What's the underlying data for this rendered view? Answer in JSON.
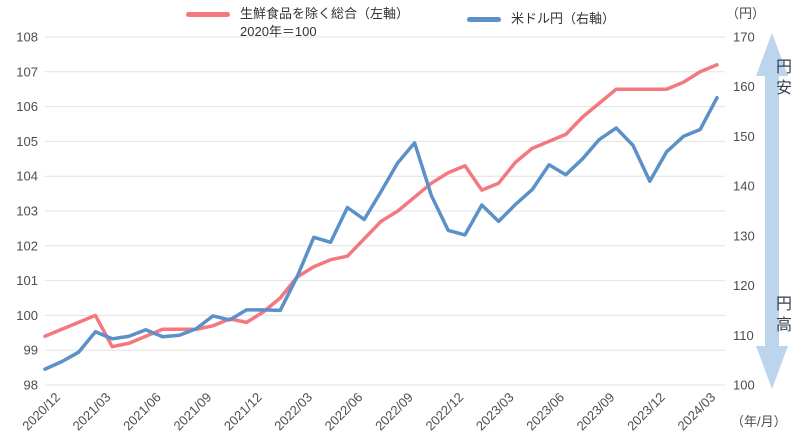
{
  "legend": {
    "cpi": {
      "line1": "生鮮食品を除く総合（左軸）",
      "line2": "2020年＝100",
      "color": "#F4787F"
    },
    "usdjpy": {
      "label": "米ドル円（右軸）",
      "color": "#5B91C8"
    }
  },
  "axes": {
    "right_unit": "（円）",
    "x_unit": "（年/月）"
  },
  "annotations": {
    "yen_weak": "円安",
    "yen_strong": "円高",
    "arrow_color": "#BCD4EC",
    "text_color": "#333F50"
  },
  "chart_data": {
    "type": "line",
    "x": [
      "2020/12",
      "2021/01",
      "2021/02",
      "2021/03",
      "2021/04",
      "2021/05",
      "2021/06",
      "2021/07",
      "2021/08",
      "2021/09",
      "2021/10",
      "2021/11",
      "2021/12",
      "2022/01",
      "2022/02",
      "2022/03",
      "2022/04",
      "2022/05",
      "2022/06",
      "2022/07",
      "2022/08",
      "2022/09",
      "2022/10",
      "2022/11",
      "2022/12",
      "2023/01",
      "2023/02",
      "2023/03",
      "2023/04",
      "2023/05",
      "2023/06",
      "2023/07",
      "2023/08",
      "2023/09",
      "2023/10",
      "2023/11",
      "2023/12",
      "2024/01",
      "2024/02",
      "2024/03",
      "2024/04"
    ],
    "x_tick_labels": [
      "2020/12",
      "2021/03",
      "2021/06",
      "2021/09",
      "2021/12",
      "2022/03",
      "2022/06",
      "2022/09",
      "2022/12",
      "2023/03",
      "2023/06",
      "2023/09",
      "2023/12",
      "2024/03"
    ],
    "x_tick_step": 3,
    "left_axis": {
      "min": 98,
      "max": 108,
      "ticks": [
        98,
        99,
        100,
        101,
        102,
        103,
        104,
        105,
        106,
        107,
        108
      ]
    },
    "right_axis": {
      "min": 100,
      "max": 170,
      "ticks": [
        100,
        110,
        120,
        130,
        140,
        150,
        160,
        170
      ],
      "unit": "円"
    },
    "grid": "horizontal",
    "legend_position": "top",
    "series": [
      {
        "name": "生鮮食品を除く総合（左軸）2020年＝100",
        "axis": "left",
        "color": "#F4787F",
        "values": [
          99.4,
          99.6,
          99.8,
          100.0,
          99.1,
          99.2,
          99.4,
          99.6,
          99.6,
          99.6,
          99.7,
          99.9,
          99.8,
          100.1,
          100.5,
          101.1,
          101.4,
          101.6,
          101.7,
          102.2,
          102.7,
          103.0,
          103.4,
          103.8,
          104.1,
          104.3,
          103.6,
          103.8,
          104.4,
          104.8,
          105.0,
          105.2,
          105.7,
          106.1,
          106.5,
          106.5,
          106.5,
          106.5,
          106.7,
          107.0,
          107.2
        ]
      },
      {
        "name": "米ドル円（右軸）",
        "axis": "right",
        "color": "#5B91C8",
        "values": [
          103.2,
          104.7,
          106.6,
          110.7,
          109.3,
          109.8,
          111.1,
          109.7,
          110.0,
          111.3,
          113.9,
          113.1,
          115.1,
          115.1,
          115.0,
          121.7,
          129.7,
          128.7,
          135.7,
          133.3,
          138.9,
          144.7,
          148.7,
          138.1,
          131.1,
          130.2,
          136.2,
          132.9,
          136.3,
          139.3,
          144.3,
          142.3,
          145.5,
          149.4,
          151.7,
          148.2,
          141.0,
          146.9,
          150.0,
          151.4,
          157.8
        ]
      }
    ]
  }
}
